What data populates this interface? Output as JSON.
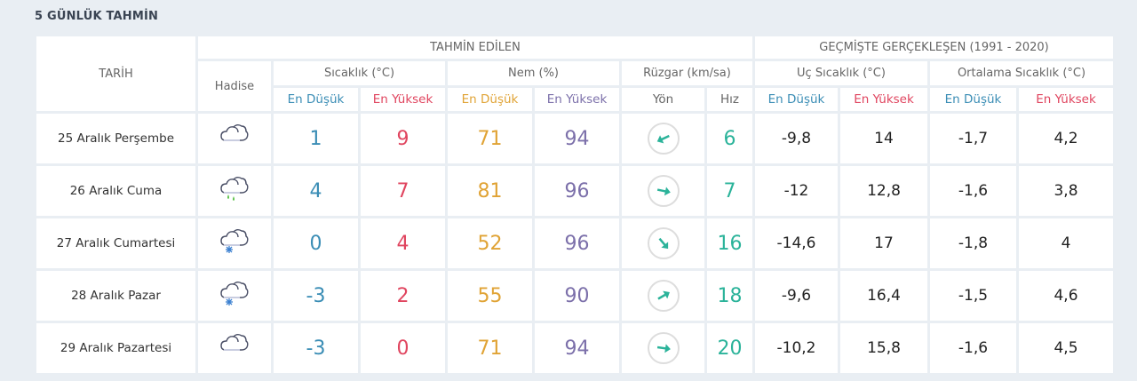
{
  "title": "5 GÜNLÜK TAHMİN",
  "headers": {
    "date": "TARİH",
    "forecast": "TAHMİN EDİLEN",
    "history": "GEÇMİŞTE GERÇEKLEŞEN (1991 - 2020)",
    "event": "Hadise",
    "temp": "Sıcaklık (°C)",
    "humidity": "Nem (%)",
    "wind": "Rüzgar (km/sa)",
    "extreme_temp": "Uç Sıcaklık (°C)",
    "avg_temp": "Ortalama Sıcaklık (°C)",
    "min": "En Düşük",
    "max": "En Yüksek",
    "direction": "Yön",
    "speed": "Hız"
  },
  "colors": {
    "min": "#3a8db5",
    "max": "#e0455f",
    "humidity_min": "#e0a335",
    "humidity_max": "#7c70aa",
    "wind": "#2bb39a"
  },
  "rows": [
    {
      "date": "25 Aralık Perşembe",
      "icon": "cloudy",
      "temp_min": "1",
      "temp_max": "9",
      "hum_min": "71",
      "hum_max": "94",
      "wind_arrow_deg": 155,
      "wind_speed": "6",
      "ext_min": "-9,8",
      "ext_max": "14",
      "avg_min": "-1,7",
      "avg_max": "4,2"
    },
    {
      "date": "26 Aralık Cuma",
      "icon": "rain",
      "temp_min": "4",
      "temp_max": "7",
      "hum_min": "81",
      "hum_max": "96",
      "wind_arrow_deg": 12,
      "wind_speed": "7",
      "ext_min": "-12",
      "ext_max": "12,8",
      "avg_min": "-1,6",
      "avg_max": "3,8"
    },
    {
      "date": "27 Aralık Cumartesi",
      "icon": "snow",
      "temp_min": "0",
      "temp_max": "4",
      "hum_min": "52",
      "hum_max": "96",
      "wind_arrow_deg": 50,
      "wind_speed": "16",
      "ext_min": "-14,6",
      "ext_max": "17",
      "avg_min": "-1,8",
      "avg_max": "4"
    },
    {
      "date": "28 Aralık Pazar",
      "icon": "snow",
      "temp_min": "-3",
      "temp_max": "2",
      "hum_min": "55",
      "hum_max": "90",
      "wind_arrow_deg": -30,
      "wind_speed": "18",
      "ext_min": "-9,6",
      "ext_max": "16,4",
      "avg_min": "-1,5",
      "avg_max": "4,6"
    },
    {
      "date": "29 Aralık Pazartesi",
      "icon": "cloudy",
      "temp_min": "-3",
      "temp_max": "0",
      "hum_min": "71",
      "hum_max": "94",
      "wind_arrow_deg": 8,
      "wind_speed": "20",
      "ext_min": "-10,2",
      "ext_max": "15,8",
      "avg_min": "-1,6",
      "avg_max": "4,5"
    }
  ]
}
